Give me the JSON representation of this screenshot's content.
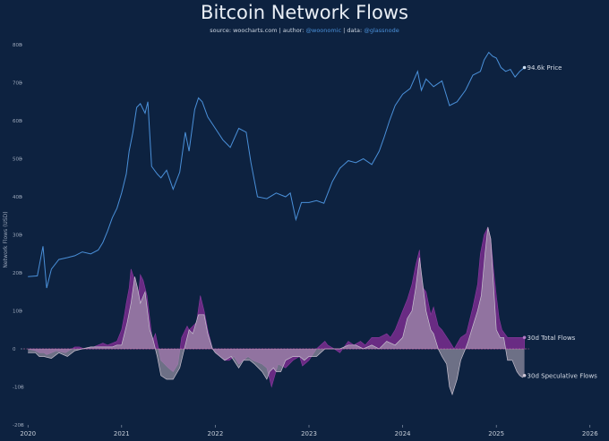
{
  "header": {
    "title": "Bitcoin Network Flows",
    "source_prefix": "source: ",
    "source_site": "woocharts.com",
    "author_prefix": " | author: ",
    "author_handle": "@woonomic",
    "data_prefix": " | data: ",
    "data_handle": "@glassnode"
  },
  "colors": {
    "background": "#0d2240",
    "price": "#4a90d9",
    "total_flows": "#7a2d8f",
    "speculative_flows": "#a9a0b2",
    "zero_line": "#e07ab0"
  },
  "chart_data": {
    "type": "area",
    "title": "Bitcoin Network Flows",
    "xlabel": "",
    "ylabel": "Network Flows (USD)",
    "xlim": [
      2019.95,
      2026.05
    ],
    "ylim": [
      -20,
      80
    ],
    "yticks": [
      -20,
      -10,
      0,
      10,
      20,
      30,
      40,
      50,
      60,
      70,
      80
    ],
    "ytick_labels": [
      "-20B",
      "-10B",
      "0",
      "10B",
      "20B",
      "30B",
      "40B",
      "50B",
      "60B",
      "70B",
      "80B"
    ],
    "xticks": [
      2020,
      2021,
      2022,
      2023,
      2024,
      2025,
      2026
    ],
    "xtick_labels": [
      "2020",
      "2021",
      "2022",
      "2023",
      "2024",
      "2025",
      "2026"
    ],
    "grid": false,
    "end_labels": {
      "price": "94.6k Price",
      "total": "30d Total Flows",
      "speculative": "30d Speculative Flows"
    },
    "series": [
      {
        "name": "Price",
        "x": [
          2020.0,
          2020.1,
          2020.16,
          2020.2,
          2020.25,
          2020.33,
          2020.42,
          2020.5,
          2020.58,
          2020.67,
          2020.75,
          2020.8,
          2020.85,
          2020.9,
          2020.95,
          2021.0,
          2021.05,
          2021.08,
          2021.12,
          2021.16,
          2021.2,
          2021.25,
          2021.28,
          2021.32,
          2021.38,
          2021.42,
          2021.48,
          2021.55,
          2021.62,
          2021.68,
          2021.72,
          2021.78,
          2021.82,
          2021.86,
          2021.92,
          2022.0,
          2022.08,
          2022.16,
          2022.25,
          2022.33,
          2022.38,
          2022.45,
          2022.55,
          2022.65,
          2022.75,
          2022.8,
          2022.86,
          2022.92,
          2023.0,
          2023.08,
          2023.16,
          2023.25,
          2023.33,
          2023.42,
          2023.5,
          2023.58,
          2023.67,
          2023.75,
          2023.8,
          2023.86,
          2023.92,
          2024.0,
          2024.08,
          2024.16,
          2024.2,
          2024.25,
          2024.33,
          2024.42,
          2024.5,
          2024.58,
          2024.67,
          2024.75,
          2024.83,
          2024.87,
          2024.92,
          2024.96,
          2025.0,
          2025.05,
          2025.1,
          2025.15,
          2025.2,
          2025.25,
          2025.3
        ],
        "values": [
          19,
          19.2,
          27,
          16,
          21,
          23.5,
          24,
          24.5,
          25.5,
          25,
          26,
          28,
          31,
          34.5,
          37,
          41,
          46,
          52,
          57,
          63.5,
          64.5,
          62,
          65,
          48,
          46,
          45,
          47,
          42,
          46.5,
          57,
          52,
          63,
          66,
          65,
          61,
          58,
          55,
          53,
          58,
          57,
          49,
          40,
          39.5,
          41,
          40,
          41,
          34,
          38.5,
          38.5,
          39,
          38.3,
          44,
          47.5,
          49.5,
          49,
          50,
          48.5,
          52,
          55.5,
          60,
          64,
          67,
          68.5,
          73,
          68,
          71,
          69,
          70.5,
          64,
          65,
          68,
          72,
          73,
          76,
          78,
          77,
          76.5,
          74,
          73,
          73.5,
          71.5,
          73,
          74
        ]
      },
      {
        "name": "30d Total Flows",
        "x": [
          2020.0,
          2020.08,
          2020.12,
          2020.17,
          2020.2,
          2020.25,
          2020.3,
          2020.4,
          2020.5,
          2020.55,
          2020.6,
          2020.7,
          2020.8,
          2020.85,
          2020.9,
          2020.95,
          2021.0,
          2021.03,
          2021.05,
          2021.08,
          2021.1,
          2021.14,
          2021.18,
          2021.2,
          2021.23,
          2021.27,
          2021.33,
          2021.36,
          2021.42,
          2021.5,
          2021.55,
          2021.6,
          2021.64,
          2021.7,
          2021.72,
          2021.8,
          2021.84,
          2021.88,
          2021.92,
          2021.97,
          2022.05,
          2022.1,
          2022.15,
          2022.2,
          2022.25,
          2022.3,
          2022.35,
          2022.4,
          2022.45,
          2022.5,
          2022.55,
          2022.6,
          2022.67,
          2022.75,
          2022.83,
          2022.9,
          2022.93,
          2023.0,
          2023.08,
          2023.17,
          2023.2,
          2023.27,
          2023.33,
          2023.42,
          2023.48,
          2023.55,
          2023.6,
          2023.67,
          2023.75,
          2023.83,
          2023.87,
          2023.92,
          2024.0,
          2024.05,
          2024.1,
          2024.14,
          2024.18,
          2024.2,
          2024.22,
          2024.25,
          2024.3,
          2024.33,
          2024.38,
          2024.42,
          2024.5,
          2024.55,
          2024.62,
          2024.68,
          2024.75,
          2024.8,
          2024.83,
          2024.87,
          2024.91,
          2024.94,
          2024.97,
          2025.0,
          2025.03,
          2025.06,
          2025.12,
          2025.18,
          2025.25,
          2025.3
        ],
        "values": [
          0,
          -0.5,
          -1,
          -1,
          -1.5,
          -1,
          -0.5,
          -1,
          0.5,
          0.5,
          0,
          0.5,
          1.5,
          1,
          1.5,
          2,
          5,
          9,
          12,
          16,
          21,
          18,
          14,
          19.5,
          18,
          14,
          2,
          4,
          -3,
          -5,
          -6,
          -4,
          3,
          6,
          5,
          7,
          14,
          10,
          5,
          0,
          -2,
          -3,
          -3,
          -2,
          -4,
          -3,
          -2,
          -3,
          -3.5,
          -4,
          -5,
          -10,
          -4,
          -5,
          -3,
          -2,
          -4.5,
          -3,
          0,
          2,
          1,
          0,
          -1,
          2,
          1,
          2,
          1,
          3,
          3,
          4,
          3,
          5,
          10,
          13,
          17,
          22,
          26,
          19,
          16,
          15,
          9,
          11,
          6,
          5,
          2,
          0,
          3,
          4,
          11,
          17,
          25,
          30,
          32,
          29,
          21,
          14,
          8,
          5,
          3,
          3,
          3,
          3
        ]
      },
      {
        "name": "30d Speculative Flows",
        "x": [
          2020.0,
          2020.08,
          2020.12,
          2020.17,
          2020.25,
          2020.33,
          2020.42,
          2020.5,
          2020.58,
          2020.67,
          2020.75,
          2020.8,
          2020.85,
          2020.9,
          2020.95,
          2021.0,
          2021.03,
          2021.06,
          2021.1,
          2021.14,
          2021.17,
          2021.2,
          2021.25,
          2021.3,
          2021.33,
          2021.38,
          2021.42,
          2021.48,
          2021.55,
          2021.62,
          2021.66,
          2021.72,
          2021.76,
          2021.82,
          2021.88,
          2021.92,
          2021.97,
          2022.0,
          2022.05,
          2022.1,
          2022.17,
          2022.25,
          2022.3,
          2022.37,
          2022.42,
          2022.5,
          2022.55,
          2022.58,
          2022.62,
          2022.65,
          2022.7,
          2022.75,
          2022.83,
          2022.9,
          2022.95,
          2023.0,
          2023.08,
          2023.17,
          2023.25,
          2023.33,
          2023.42,
          2023.5,
          2023.58,
          2023.67,
          2023.75,
          2023.83,
          2023.92,
          2024.0,
          2024.05,
          2024.1,
          2024.14,
          2024.18,
          2024.22,
          2024.25,
          2024.3,
          2024.33,
          2024.38,
          2024.42,
          2024.47,
          2024.5,
          2024.53,
          2024.58,
          2024.62,
          2024.67,
          2024.7,
          2024.75,
          2024.8,
          2024.84,
          2024.88,
          2024.91,
          2024.94,
          2024.97,
          2025.0,
          2025.04,
          2025.08,
          2025.12,
          2025.17,
          2025.22,
          2025.25,
          2025.28,
          2025.3
        ],
        "values": [
          -1,
          -1,
          -2,
          -2,
          -2.5,
          -1,
          -2,
          -0.5,
          0,
          0.5,
          0.5,
          0.5,
          0.5,
          0.5,
          1,
          1,
          4,
          7,
          12,
          19,
          16,
          12,
          15,
          5,
          3,
          -2,
          -7,
          -8,
          -8,
          -5,
          -1,
          5,
          4,
          9,
          9,
          4,
          0,
          -1,
          -2,
          -3,
          -2,
          -5,
          -3,
          -3,
          -4,
          -6,
          -8,
          -6,
          -5,
          -6,
          -6,
          -3,
          -2,
          -2,
          -3,
          -2,
          -2,
          0,
          0,
          0,
          1,
          1,
          0,
          1,
          0,
          2,
          1,
          3,
          8,
          10,
          16,
          24,
          16,
          10,
          5,
          4,
          0,
          -2,
          -4,
          -10,
          -12,
          -8,
          -3,
          0,
          2,
          6,
          10,
          14,
          25,
          32,
          29,
          17,
          5,
          3,
          3,
          -3,
          -3,
          -6,
          -7,
          -7.5,
          -7
        ]
      }
    ]
  }
}
